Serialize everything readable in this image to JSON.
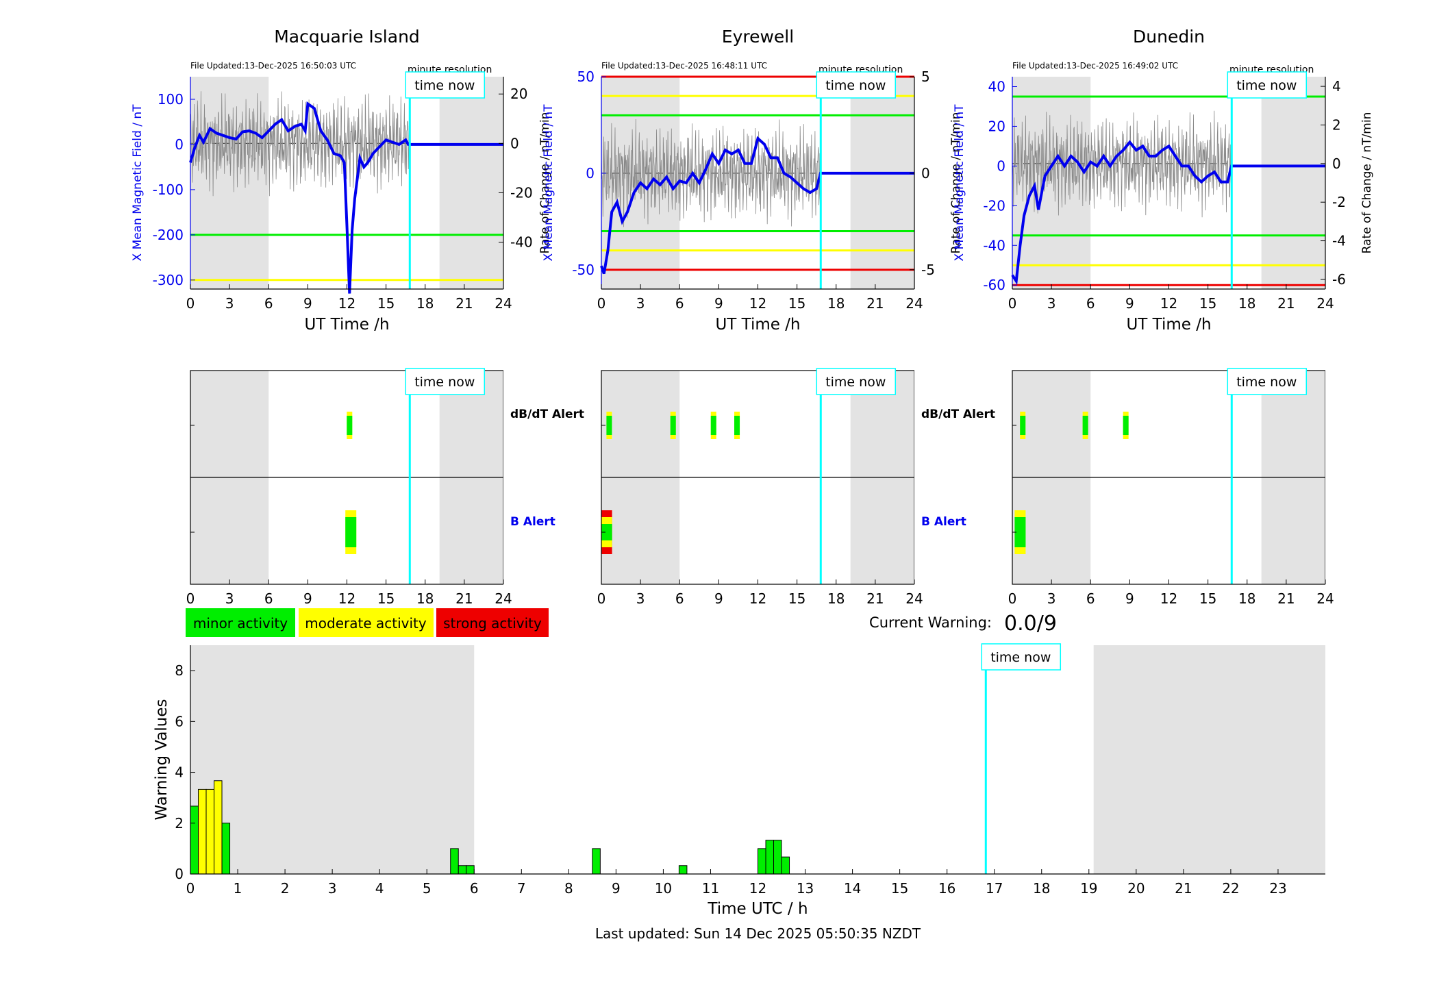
{
  "stations": [
    {
      "name": "Macquarie Island",
      "file_updated": "File Updated:13-Dec-2025 16:50:03 UTC",
      "resolution": "minute resolution",
      "ylabel_left": "X Mean Magnetic Field / nT",
      "ylabel_right": "Rate of Change / nT/min",
      "ylim": [
        -320,
        150
      ],
      "yticks": [
        100,
        0,
        -100,
        -200,
        -300
      ],
      "y2lim": [
        -59,
        27
      ],
      "y2ticks": [
        20,
        0,
        -20,
        -40
      ],
      "thresholds": [
        {
          "value": -200,
          "color": "#00ee00"
        },
        {
          "value": -300,
          "color": "#ffff00"
        }
      ],
      "trace": [
        [
          0,
          -40
        ],
        [
          0.3,
          -10
        ],
        [
          0.7,
          20
        ],
        [
          1.0,
          5
        ],
        [
          1.5,
          35
        ],
        [
          2,
          25
        ],
        [
          2.5,
          20
        ],
        [
          3,
          15
        ],
        [
          3.5,
          12
        ],
        [
          4,
          28
        ],
        [
          4.5,
          30
        ],
        [
          5,
          25
        ],
        [
          5.5,
          15
        ],
        [
          6,
          30
        ],
        [
          6.5,
          45
        ],
        [
          7,
          55
        ],
        [
          7.5,
          30
        ],
        [
          8,
          40
        ],
        [
          8.5,
          45
        ],
        [
          8.8,
          30
        ],
        [
          9,
          90
        ],
        [
          9.5,
          80
        ],
        [
          10,
          30
        ],
        [
          10.5,
          10
        ],
        [
          11,
          -20
        ],
        [
          11.5,
          -25
        ],
        [
          11.8,
          -40
        ],
        [
          12,
          -180
        ],
        [
          12.2,
          -330
        ],
        [
          12.4,
          -190
        ],
        [
          12.6,
          -120
        ],
        [
          13,
          -30
        ],
        [
          13.3,
          -50
        ],
        [
          13.6,
          -40
        ],
        [
          14,
          -20
        ],
        [
          14.5,
          -5
        ],
        [
          15,
          10
        ],
        [
          15.5,
          5
        ],
        [
          16,
          0
        ],
        [
          16.5,
          10
        ],
        [
          16.7,
          0
        ],
        [
          16.8,
          0
        ],
        [
          24,
          0
        ]
      ],
      "dbdt_bars": [
        {
          "t": 12.2,
          "color": "#00ee00"
        }
      ],
      "b_bars": [
        {
          "t": 12.3,
          "levels": [
            "yellow",
            "green"
          ]
        }
      ]
    },
    {
      "name": "Eyrewell",
      "file_updated": "File Updated:13-Dec-2025 16:48:11 UTC",
      "resolution": "minute resolution",
      "ylabel_left": "X Mean Magnetic Field / nT",
      "ylabel_right": "Rate of Change / nT/min",
      "ylim": [
        -60,
        50
      ],
      "yticks": [
        50,
        0,
        -50
      ],
      "y2lim": [
        -6,
        5
      ],
      "y2ticks": [
        5,
        0,
        -5
      ],
      "thresholds": [
        {
          "value": 50,
          "color": "#ee0000"
        },
        {
          "value": 40,
          "color": "#ffff00"
        },
        {
          "value": 30,
          "color": "#00ee00"
        },
        {
          "value": -30,
          "color": "#00ee00"
        },
        {
          "value": -40,
          "color": "#ffff00"
        },
        {
          "value": -50,
          "color": "#ee0000"
        }
      ],
      "trace": [
        [
          0,
          -48
        ],
        [
          0.2,
          -52
        ],
        [
          0.5,
          -40
        ],
        [
          0.8,
          -20
        ],
        [
          1.2,
          -15
        ],
        [
          1.6,
          -25
        ],
        [
          2,
          -20
        ],
        [
          2.5,
          -10
        ],
        [
          3,
          -5
        ],
        [
          3.5,
          -8
        ],
        [
          4,
          -3
        ],
        [
          4.5,
          -6
        ],
        [
          5,
          -2
        ],
        [
          5.5,
          -8
        ],
        [
          6,
          -4
        ],
        [
          6.5,
          -5
        ],
        [
          7,
          0
        ],
        [
          7.5,
          -5
        ],
        [
          8,
          2
        ],
        [
          8.5,
          10
        ],
        [
          9,
          5
        ],
        [
          9.5,
          12
        ],
        [
          10,
          10
        ],
        [
          10.5,
          12
        ],
        [
          11,
          5
        ],
        [
          11.5,
          5
        ],
        [
          12,
          18
        ],
        [
          12.5,
          15
        ],
        [
          13,
          8
        ],
        [
          13.5,
          8
        ],
        [
          14,
          0
        ],
        [
          14.5,
          -2
        ],
        [
          15,
          -5
        ],
        [
          15.5,
          -8
        ],
        [
          16,
          -10
        ],
        [
          16.5,
          -8
        ],
        [
          16.8,
          0
        ],
        [
          24,
          0
        ]
      ],
      "dbdt_bars": [
        {
          "t": 0.6,
          "color": "#00ee00"
        },
        {
          "t": 5.5,
          "color": "#00ee00"
        },
        {
          "t": 8.6,
          "color": "#00ee00"
        },
        {
          "t": 10.4,
          "color": "#00ee00"
        }
      ],
      "b_bars": [
        {
          "t": 0.4,
          "levels": [
            "red",
            "yellow",
            "green"
          ]
        }
      ]
    },
    {
      "name": "Dunedin",
      "file_updated": "File Updated:13-Dec-2025 16:49:02 UTC",
      "resolution": "minute resolution",
      "ylabel_left": "X Mean Magnetic Field / nT",
      "ylabel_right": "Rate of Change / nT/min",
      "ylim": [
        -62,
        45
      ],
      "yticks": [
        40,
        20,
        0,
        -20,
        -40,
        -60
      ],
      "y2lim": [
        -6.5,
        4.5
      ],
      "y2ticks": [
        4,
        2,
        0,
        -2,
        -4,
        -6
      ],
      "thresholds": [
        {
          "value": 35,
          "color": "#00ee00"
        },
        {
          "value": -35,
          "color": "#00ee00"
        },
        {
          "value": -50,
          "color": "#ffff00"
        },
        {
          "value": -60,
          "color": "#ee0000"
        }
      ],
      "trace": [
        [
          0,
          -55
        ],
        [
          0.3,
          -58
        ],
        [
          0.6,
          -40
        ],
        [
          0.9,
          -25
        ],
        [
          1.3,
          -15
        ],
        [
          1.7,
          -10
        ],
        [
          2,
          -22
        ],
        [
          2.5,
          -5
        ],
        [
          3,
          0
        ],
        [
          3.5,
          5
        ],
        [
          4,
          0
        ],
        [
          4.5,
          5
        ],
        [
          5,
          2
        ],
        [
          5.5,
          -3
        ],
        [
          6,
          2
        ],
        [
          6.5,
          0
        ],
        [
          7,
          5
        ],
        [
          7.5,
          0
        ],
        [
          8,
          5
        ],
        [
          8.5,
          8
        ],
        [
          9,
          12
        ],
        [
          9.5,
          8
        ],
        [
          10,
          10
        ],
        [
          10.5,
          5
        ],
        [
          11,
          5
        ],
        [
          11.5,
          8
        ],
        [
          12,
          10
        ],
        [
          12.5,
          5
        ],
        [
          13,
          0
        ],
        [
          13.5,
          0
        ],
        [
          14,
          -5
        ],
        [
          14.5,
          -8
        ],
        [
          15,
          -5
        ],
        [
          15.5,
          -3
        ],
        [
          16,
          -8
        ],
        [
          16.5,
          -8
        ],
        [
          16.8,
          0
        ],
        [
          24,
          0
        ]
      ],
      "dbdt_bars": [
        {
          "t": 0.8,
          "color": "#00ee00"
        },
        {
          "t": 5.6,
          "color": "#00ee00"
        },
        {
          "t": 8.7,
          "color": "#00ee00"
        }
      ],
      "b_bars": [
        {
          "t": 0.6,
          "levels": [
            "yellow",
            "green"
          ]
        }
      ]
    }
  ],
  "xlabel_top": "UT Time /h",
  "xticks_24": [
    0,
    3,
    6,
    9,
    12,
    15,
    18,
    21,
    24
  ],
  "time_now_label": "time now",
  "time_now": 16.82,
  "night_shading": [
    [
      0,
      6
    ],
    [
      19.1,
      24
    ]
  ],
  "alert_labels": {
    "dbdt": "dB/dT Alert",
    "b": "B Alert"
  },
  "legend": {
    "minor": "minor activity",
    "moderate": "moderate activity",
    "strong": "strong activity"
  },
  "current_warning_label": "Current Warning:",
  "current_warning_value": "0.0/9",
  "chart_data": {
    "type": "bar",
    "xlabel": "Time UTC / h",
    "ylabel": "Warning Values",
    "xlim": [
      0,
      24
    ],
    "ylim": [
      0,
      9
    ],
    "yticks": [
      0,
      2,
      4,
      6,
      8
    ],
    "xticks": [
      0,
      1,
      2,
      3,
      4,
      5,
      6,
      7,
      8,
      9,
      10,
      11,
      12,
      13,
      14,
      15,
      16,
      17,
      18,
      19,
      20,
      21,
      22,
      23
    ],
    "bar_width": 0.166667,
    "bars": [
      {
        "x": 0.0,
        "value": 2.67,
        "color": "#00ee00"
      },
      {
        "x": 0.167,
        "value": 3.33,
        "color": "#ffff00"
      },
      {
        "x": 0.333,
        "value": 3.33,
        "color": "#ffff00"
      },
      {
        "x": 0.5,
        "value": 3.67,
        "color": "#ffff00"
      },
      {
        "x": 0.667,
        "value": 2.0,
        "color": "#00ee00"
      },
      {
        "x": 5.5,
        "value": 1.0,
        "color": "#00ee00"
      },
      {
        "x": 5.667,
        "value": 0.33,
        "color": "#00ee00"
      },
      {
        "x": 5.833,
        "value": 0.33,
        "color": "#00ee00"
      },
      {
        "x": 8.5,
        "value": 1.0,
        "color": "#00ee00"
      },
      {
        "x": 10.333,
        "value": 0.33,
        "color": "#00ee00"
      },
      {
        "x": 12.0,
        "value": 1.0,
        "color": "#00ee00"
      },
      {
        "x": 12.167,
        "value": 1.33,
        "color": "#00ee00"
      },
      {
        "x": 12.333,
        "value": 1.33,
        "color": "#00ee00"
      },
      {
        "x": 12.5,
        "value": 0.67,
        "color": "#00ee00"
      }
    ]
  },
  "last_updated": "Last updated: Sun 14 Dec 2025 05:50:35 NZDT"
}
